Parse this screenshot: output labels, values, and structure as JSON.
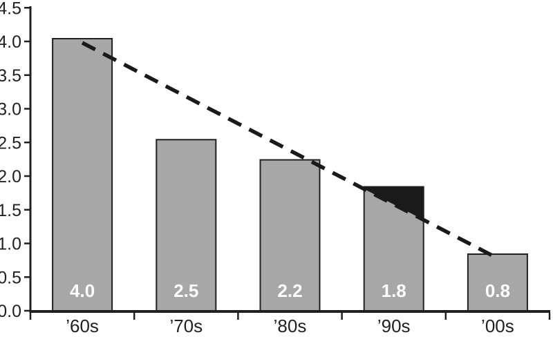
{
  "chart_data": {
    "type": "bar",
    "title": "",
    "xlabel": "",
    "ylabel": "",
    "categories": [
      "’60s",
      "’70s",
      "’80s",
      "’90s",
      "’00s"
    ],
    "values": [
      4.0,
      2.5,
      2.2,
      1.8,
      0.8
    ],
    "bar_value_labels": [
      "4.0",
      "2.5",
      "2.2",
      "1.8",
      "0.8"
    ],
    "ylim": [
      0,
      4.5
    ],
    "y_ticks": [
      0.0,
      0.5,
      1.0,
      1.5,
      2.0,
      2.5,
      3.0,
      3.5,
      4.0,
      4.5
    ],
    "y_tick_labels": [
      "0.0",
      "0.5",
      "1.0",
      "1.5",
      "2.0",
      "2.5",
      "3.0",
      "3.5",
      "4.0",
      "4.5"
    ],
    "grid": false,
    "legend": null,
    "trend_line": {
      "style": "dashed",
      "from_category": "’60s",
      "from_value": 4.0,
      "to_category": "’00s",
      "to_value": 0.8
    },
    "highlight": {
      "category": "’90s",
      "category_index": 3,
      "description": "portion of bar above the dashed trend line filled black"
    }
  },
  "colors": {
    "background": "#ffffff",
    "bar_fill": "#a7a7a7",
    "bar_border": "#231f20",
    "axis": "#231f20",
    "tick_label_text": "#231f20",
    "category_label_text": "#231f20",
    "bar_label_text": "#ffffff",
    "trend_line": "#1a1a1a",
    "highlight_fill": "#1a1a1a"
  }
}
